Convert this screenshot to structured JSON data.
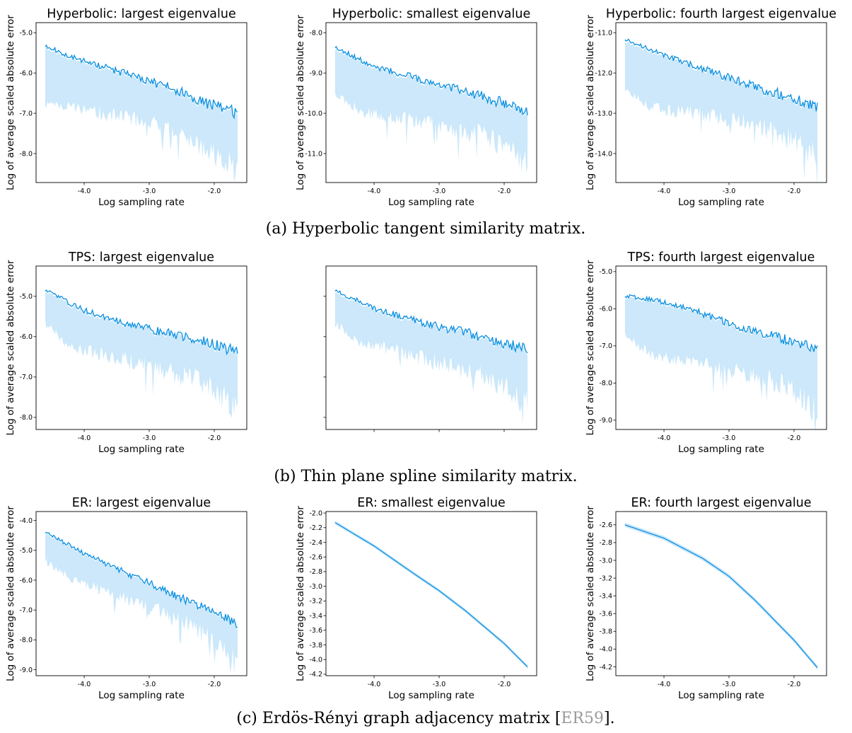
{
  "chart_data": [
    {
      "type": "line",
      "title": "Hyperbolic: largest eigenvalue",
      "xlabel": "Log sampling rate",
      "ylabel": "Log of average scaled absolute error",
      "xlim": [
        -4.74,
        -1.5
      ],
      "ylim": [
        -8.72,
        -4.75
      ],
      "xticks": [
        "-4.0",
        "-3.0",
        "-2.0"
      ],
      "xtick_values": [
        -4,
        -3,
        -2
      ],
      "yticks": [
        "-5.0",
        "-6.0",
        "-7.0",
        "-8.0"
      ],
      "ytick_values": [
        -5,
        -6,
        -7,
        -8
      ],
      "series": [
        {
          "shape": "noisy",
          "mean": {
            "x": [
              -4.6,
              -4.2,
              -3.4,
              -2.6,
              -2.2,
              -1.64
            ],
            "y": [
              -5.32,
              -5.6,
              -6.0,
              -6.4,
              -6.7,
              -7.0
            ]
          },
          "upper": {
            "x": [
              -4.6,
              -3.0,
              -1.64
            ],
            "y": [
              -4.85,
              -5.55,
              -6.35
            ]
          },
          "lower": {
            "x": [
              -4.6,
              -4.2,
              -3.0,
              -2.4,
              -1.64
            ],
            "y": [
              -6.8,
              -6.9,
              -7.3,
              -7.8,
              -8.5
            ]
          },
          "noise": 0.12,
          "lower_noise": 0.45,
          "seed": 11,
          "color": "#0a8fe0",
          "fill": "#cce8fa"
        }
      ]
    },
    {
      "type": "line",
      "title": "Hyperbolic: smallest eigenvalue",
      "xlabel": "Log sampling rate",
      "ylabel": "Log of average scaled absolute error",
      "xlim": [
        -4.74,
        -1.5
      ],
      "ylim": [
        -11.72,
        -7.75
      ],
      "xticks": [
        "-4.0",
        "-3.0",
        "-2.0"
      ],
      "xtick_values": [
        -4,
        -3,
        -2
      ],
      "yticks": [
        "-8.0",
        "-9.0",
        "-10.0",
        "-11.0"
      ],
      "ytick_values": [
        -8,
        -9,
        -10,
        -11
      ],
      "series": [
        {
          "shape": "noisy",
          "mean": {
            "x": [
              -4.6,
              -4.0,
              -3.4,
              -2.6,
              -2.0,
              -1.64
            ],
            "y": [
              -8.35,
              -8.85,
              -9.1,
              -9.45,
              -9.75,
              -10.0
            ]
          },
          "upper": {
            "x": [
              -4.6,
              -3.0,
              -1.64
            ],
            "y": [
              -7.85,
              -8.6,
              -9.55
            ]
          },
          "lower": {
            "x": [
              -4.6,
              -4.2,
              -3.0,
              -2.2,
              -1.64
            ],
            "y": [
              -9.55,
              -10.0,
              -10.35,
              -10.7,
              -11.3
            ]
          },
          "noise": 0.12,
          "lower_noise": 0.45,
          "seed": 23,
          "color": "#0a8fe0",
          "fill": "#cce8fa"
        }
      ]
    },
    {
      "type": "line",
      "title": "Hyperbolic: fourth largest eigenvalue",
      "xlabel": "Log sampling rate",
      "ylabel": "Log of average scaled absolute error",
      "xlim": [
        -4.74,
        -1.5
      ],
      "ylim": [
        -14.72,
        -10.75
      ],
      "xticks": [
        "-4.0",
        "-3.0",
        "-2.0"
      ],
      "xtick_values": [
        -4,
        -3,
        -2
      ],
      "yticks": [
        "-11.0",
        "-12.0",
        "-13.0",
        "-14.0"
      ],
      "ytick_values": [
        -11,
        -12,
        -13,
        -14
      ],
      "series": [
        {
          "shape": "noisy",
          "mean": {
            "x": [
              -4.6,
              -4.0,
              -3.4,
              -2.6,
              -2.0,
              -1.64
            ],
            "y": [
              -11.15,
              -11.55,
              -11.9,
              -12.35,
              -12.6,
              -12.85
            ]
          },
          "upper": {
            "x": [
              -4.6,
              -3.0,
              -1.64
            ],
            "y": [
              -10.7,
              -11.5,
              -12.35
            ]
          },
          "lower": {
            "x": [
              -4.6,
              -4.2,
              -3.0,
              -2.2,
              -1.64
            ],
            "y": [
              -12.4,
              -12.9,
              -13.2,
              -13.6,
              -14.2
            ]
          },
          "noise": 0.12,
          "lower_noise": 0.45,
          "seed": 37,
          "color": "#0a8fe0",
          "fill": "#cce8fa"
        }
      ]
    },
    {
      "type": "line",
      "title": "TPS: largest eigenvalue",
      "xlabel": "Log sampling rate",
      "ylabel": "Log of average scaled absolute error",
      "xlim": [
        -4.74,
        -1.5
      ],
      "ylim": [
        -8.3,
        -4.25
      ],
      "xticks": [
        "-4.0",
        "-3.0",
        "-2.0"
      ],
      "xtick_values": [
        -4,
        -3,
        -2
      ],
      "yticks": [
        "-5.0",
        "-6.0",
        "-7.0",
        "-8.0"
      ],
      "ytick_values": [
        -5,
        -6,
        -7,
        -8
      ],
      "series": [
        {
          "shape": "noisy",
          "mean": {
            "x": [
              -4.6,
              -4.0,
              -3.4,
              -2.6,
              -2.0,
              -1.64
            ],
            "y": [
              -4.85,
              -5.35,
              -5.65,
              -5.95,
              -6.2,
              -6.4
            ]
          },
          "upper": {
            "x": [
              -4.6,
              -3.0,
              -1.64
            ],
            "y": [
              -4.45,
              -5.1,
              -5.85
            ]
          },
          "lower": {
            "x": [
              -4.6,
              -4.2,
              -3.0,
              -2.2,
              -1.64
            ],
            "y": [
              -5.7,
              -6.3,
              -6.8,
              -7.2,
              -7.9
            ]
          },
          "noise": 0.12,
          "lower_noise": 0.45,
          "seed": 41,
          "color": "#0a8fe0",
          "fill": "#cce8fa"
        }
      ]
    },
    {
      "type": "line",
      "title": "",
      "xlabel": "",
      "ylabel": "",
      "xlim": [
        -4.74,
        -1.5
      ],
      "ylim": [
        -8.3,
        -4.25
      ],
      "xticks": [
        "",
        "",
        ""
      ],
      "xtick_values": [
        -4,
        -3,
        -2
      ],
      "yticks": [
        "",
        "",
        "",
        ""
      ],
      "ytick_values": [
        -5,
        -6,
        -7,
        -8
      ],
      "series": [
        {
          "shape": "noisy",
          "mean": {
            "x": [
              -4.6,
              -4.0,
              -3.4,
              -2.6,
              -2.0,
              -1.64
            ],
            "y": [
              -4.85,
              -5.3,
              -5.6,
              -5.9,
              -6.15,
              -6.3
            ]
          },
          "upper": {
            "x": [
              -4.6,
              -3.0,
              -1.64
            ],
            "y": [
              -4.45,
              -5.1,
              -5.8
            ]
          },
          "lower": {
            "x": [
              -4.6,
              -4.2,
              -3.0,
              -2.2,
              -1.64
            ],
            "y": [
              -5.7,
              -6.2,
              -6.7,
              -7.1,
              -7.8
            ]
          },
          "noise": 0.12,
          "lower_noise": 0.45,
          "seed": 53,
          "color": "#0a8fe0",
          "fill": "#cce8fa"
        }
      ]
    },
    {
      "type": "line",
      "title": "TPS: fourth largest eigenvalue",
      "xlabel": "Log sampling rate",
      "ylabel": "Log of average scaled absolute error",
      "xlim": [
        -4.74,
        -1.5
      ],
      "ylim": [
        -9.25,
        -4.85
      ],
      "xticks": [
        "-4.0",
        "-3.0",
        "-2.0"
      ],
      "xtick_values": [
        -4,
        -3,
        -2
      ],
      "yticks": [
        "-5.0",
        "-6.0",
        "-7.0",
        "-8.0",
        "-9.0"
      ],
      "ytick_values": [
        -5,
        -6,
        -7,
        -8,
        -9
      ],
      "series": [
        {
          "shape": "noisy",
          "mean": {
            "x": [
              -4.6,
              -4.2,
              -3.6,
              -3.0,
              -2.4,
              -1.64
            ],
            "y": [
              -5.65,
              -5.75,
              -6.0,
              -6.4,
              -6.7,
              -7.05
            ]
          },
          "upper": {
            "x": [
              -4.6,
              -3.0,
              -1.64
            ],
            "y": [
              -5.05,
              -5.75,
              -6.5
            ]
          },
          "lower": {
            "x": [
              -4.6,
              -4.2,
              -3.0,
              -2.2,
              -1.64
            ],
            "y": [
              -6.7,
              -7.3,
              -7.7,
              -8.1,
              -8.8
            ]
          },
          "noise": 0.12,
          "lower_noise": 0.45,
          "seed": 67,
          "color": "#0a8fe0",
          "fill": "#cce8fa"
        }
      ]
    },
    {
      "type": "line",
      "title": "ER: largest eigenvalue",
      "xlabel": "Log sampling rate",
      "ylabel": "Log of average scaled absolute error",
      "xlim": [
        -4.74,
        -1.5
      ],
      "ylim": [
        -9.2,
        -3.7
      ],
      "xticks": [
        "-4.0",
        "-3.0",
        "-2.0"
      ],
      "xtick_values": [
        -4,
        -3,
        -2
      ],
      "yticks": [
        "-4.0",
        "-5.0",
        "-6.0",
        "-7.0",
        "-8.0",
        "-9.0"
      ],
      "ytick_values": [
        -4,
        -5,
        -6,
        -7,
        -8,
        -9
      ],
      "series": [
        {
          "shape": "noisy",
          "mean": {
            "x": [
              -4.6,
              -4.0,
              -3.4,
              -2.6,
              -2.0,
              -1.64
            ],
            "y": [
              -4.4,
              -5.1,
              -5.7,
              -6.5,
              -7.1,
              -7.5
            ]
          },
          "upper": {
            "x": [
              -4.6,
              -3.0,
              -1.64
            ],
            "y": [
              -3.95,
              -5.3,
              -6.8
            ]
          },
          "lower": {
            "x": [
              -4.6,
              -4.2,
              -3.0,
              -2.2,
              -1.64
            ],
            "y": [
              -5.4,
              -6.0,
              -7.0,
              -7.8,
              -8.8
            ]
          },
          "noise": 0.14,
          "lower_noise": 0.5,
          "seed": 71,
          "color": "#0a8fe0",
          "fill": "#cce8fa"
        }
      ]
    },
    {
      "type": "line",
      "title": "ER: smallest eigenvalue",
      "xlabel": "Log sampling rate",
      "ylabel": "Log of average scaled absolute error",
      "xlim": [
        -4.74,
        -1.5
      ],
      "ylim": [
        -4.22,
        -1.98
      ],
      "xticks": [
        "-4.0",
        "-3.0",
        "-2.0"
      ],
      "xtick_values": [
        -4,
        -3,
        -2
      ],
      "yticks": [
        "-2.0",
        "-2.2",
        "-2.4",
        "-2.6",
        "-2.8",
        "-3.0",
        "-3.2",
        "-3.4",
        "-3.6",
        "-3.8",
        "-4.0",
        "-4.2"
      ],
      "ytick_values": [
        -2.0,
        -2.2,
        -2.4,
        -2.6,
        -2.8,
        -3.0,
        -3.2,
        -3.4,
        -3.6,
        -3.8,
        -4.0,
        -4.2
      ],
      "series": [
        {
          "shape": "smooth",
          "mean": {
            "x": [
              -4.6,
              -4.0,
              -3.4,
              -3.0,
              -2.6,
              -2.0,
              -1.64
            ],
            "y": [
              -2.13,
              -2.45,
              -2.82,
              -3.06,
              -3.33,
              -3.78,
              -4.1
            ]
          },
          "band": 0.025,
          "color": "#0a8fe0",
          "fill": "#cce8fa"
        }
      ]
    },
    {
      "type": "line",
      "title": "ER: fourth largest eigenvalue",
      "xlabel": "Log sampling rate",
      "ylabel": "Log of average scaled absolute error",
      "xlim": [
        -4.74,
        -1.5
      ],
      "ylim": [
        -4.3,
        -2.45
      ],
      "xticks": [
        "-4.0",
        "-3.0",
        "-2.0"
      ],
      "xtick_values": [
        -4,
        -3,
        -2
      ],
      "yticks": [
        "-2.6",
        "-2.8",
        "-3.0",
        "-3.2",
        "-3.4",
        "-3.6",
        "-3.8",
        "-4.0",
        "-4.2"
      ],
      "ytick_values": [
        -2.6,
        -2.8,
        -3.0,
        -3.2,
        -3.4,
        -3.6,
        -3.8,
        -4.0,
        -4.2
      ],
      "series": [
        {
          "shape": "smooth",
          "mean": {
            "x": [
              -4.6,
              -4.0,
              -3.4,
              -3.0,
              -2.6,
              -2.0,
              -1.64
            ],
            "y": [
              -2.6,
              -2.75,
              -2.98,
              -3.18,
              -3.45,
              -3.9,
              -4.21
            ]
          },
          "band": 0.025,
          "color": "#0a8fe0",
          "fill": "#cce8fa"
        }
      ]
    }
  ],
  "captions": {
    "a": "(a) Hyperbolic tangent similarity matrix.",
    "b": "(b) Thin plane spline similarity matrix.",
    "c_text": "(c) Erdös-Rényi graph adjacency matrix [",
    "c_cite": "ER59",
    "c_end": "]."
  }
}
